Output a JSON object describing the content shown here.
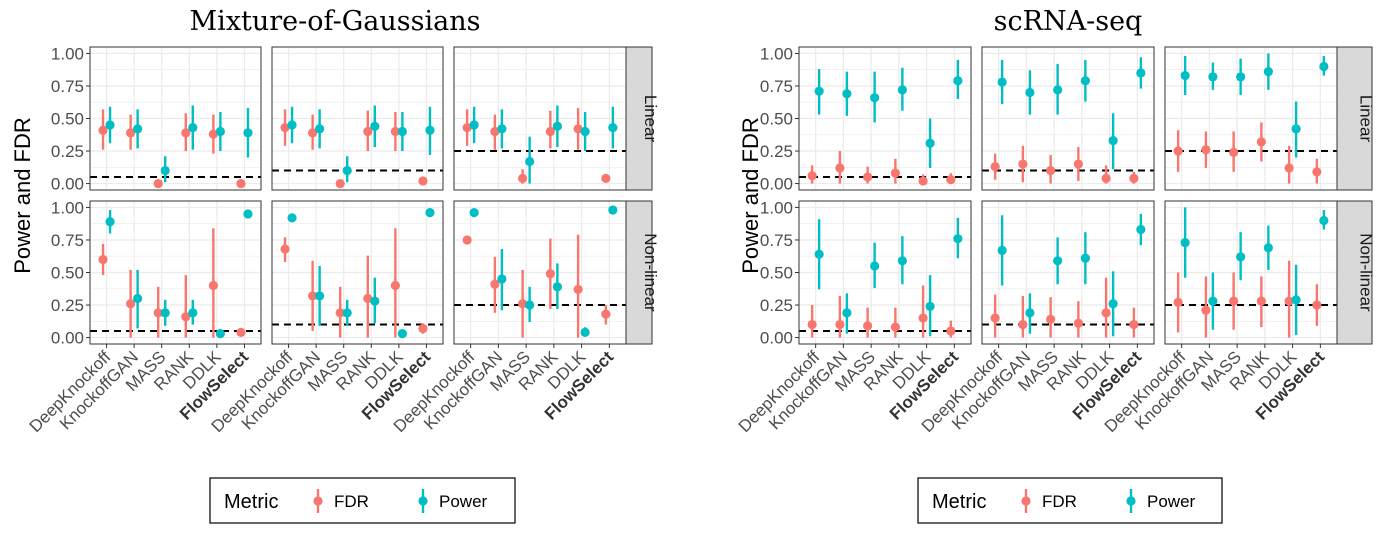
{
  "chart_data": [
    {
      "type": "scatter",
      "title": "Mixture-of-Gaussians",
      "ylabel": "Power and FDR",
      "ylim": [
        0,
        1
      ],
      "yticks": [
        "0.00",
        "0.25",
        "0.50",
        "0.75",
        "1.00"
      ],
      "categories": [
        "DeepKnockoff",
        "KnockoffGAN",
        "MASS",
        "RANK",
        "DDLK",
        "FlowSelect"
      ],
      "bold_category": "FlowSelect",
      "rows": [
        "Linear",
        "Non-linear"
      ],
      "fdr_targets": [
        0.05,
        0.1,
        0.25
      ],
      "legend": {
        "title": "Metric",
        "entries": [
          "FDR",
          "Power"
        ],
        "placement": "bottom"
      },
      "colors": {
        "FDR": "#F8766D",
        "Power": "#00BFC4"
      },
      "grid": true,
      "panels": [
        {
          "row": "Linear",
          "target": 0.05,
          "FDR": [
            [
              0.41,
              0.26,
              0.57
            ],
            [
              0.39,
              0.26,
              0.53
            ],
            [
              0.0,
              0.0,
              0.0
            ],
            [
              0.39,
              0.25,
              0.54
            ],
            [
              0.38,
              0.23,
              0.53
            ],
            [
              0.0,
              0.0,
              0.0
            ]
          ],
          "Power": [
            [
              0.45,
              0.31,
              0.59
            ],
            [
              0.42,
              0.27,
              0.57
            ],
            [
              0.1,
              0.01,
              0.21
            ],
            [
              0.43,
              0.26,
              0.6
            ],
            [
              0.4,
              0.25,
              0.55
            ],
            [
              0.39,
              0.2,
              0.58
            ]
          ]
        },
        {
          "row": "Linear",
          "target": 0.1,
          "FDR": [
            [
              0.43,
              0.29,
              0.57
            ],
            [
              0.39,
              0.26,
              0.53
            ],
            [
              0.0,
              0.0,
              0.0
            ],
            [
              0.4,
              0.25,
              0.56
            ],
            [
              0.4,
              0.25,
              0.55
            ],
            [
              0.02,
              0.01,
              0.03
            ]
          ],
          "Power": [
            [
              0.45,
              0.31,
              0.59
            ],
            [
              0.42,
              0.27,
              0.57
            ],
            [
              0.1,
              0.01,
              0.21
            ],
            [
              0.44,
              0.28,
              0.6
            ],
            [
              0.4,
              0.25,
              0.55
            ],
            [
              0.41,
              0.22,
              0.59
            ]
          ]
        },
        {
          "row": "Linear",
          "target": 0.25,
          "FDR": [
            [
              0.43,
              0.29,
              0.57
            ],
            [
              0.4,
              0.26,
              0.53
            ],
            [
              0.04,
              0.0,
              0.11
            ],
            [
              0.4,
              0.27,
              0.56
            ],
            [
              0.42,
              0.26,
              0.58
            ],
            [
              0.04,
              0.01,
              0.07
            ]
          ],
          "Power": [
            [
              0.45,
              0.31,
              0.59
            ],
            [
              0.42,
              0.27,
              0.57
            ],
            [
              0.17,
              0.0,
              0.36
            ],
            [
              0.44,
              0.28,
              0.6
            ],
            [
              0.4,
              0.25,
              0.55
            ],
            [
              0.43,
              0.27,
              0.59
            ]
          ]
        },
        {
          "row": "Non-linear",
          "target": 0.05,
          "FDR": [
            [
              0.6,
              0.48,
              0.72
            ],
            [
              0.26,
              0.0,
              0.52
            ],
            [
              0.19,
              0.0,
              0.39
            ],
            [
              0.16,
              0.0,
              0.48
            ],
            [
              0.4,
              0.0,
              0.84
            ],
            [
              0.04,
              0.02,
              0.07
            ]
          ],
          "Power": [
            [
              0.89,
              0.8,
              0.98
            ],
            [
              0.3,
              0.07,
              0.52
            ],
            [
              0.19,
              0.09,
              0.29
            ],
            [
              0.19,
              0.1,
              0.29
            ],
            [
              0.03,
              0.01,
              0.05
            ],
            [
              0.95,
              0.93,
              0.97
            ]
          ]
        },
        {
          "row": "Non-linear",
          "target": 0.1,
          "FDR": [
            [
              0.68,
              0.58,
              0.77
            ],
            [
              0.32,
              0.05,
              0.59
            ],
            [
              0.19,
              0.0,
              0.39
            ],
            [
              0.3,
              0.0,
              0.63
            ],
            [
              0.4,
              0.0,
              0.84
            ],
            [
              0.07,
              0.03,
              0.11
            ]
          ],
          "Power": [
            [
              0.92,
              0.91,
              0.94
            ],
            [
              0.32,
              0.09,
              0.55
            ],
            [
              0.19,
              0.09,
              0.29
            ],
            [
              0.28,
              0.11,
              0.46
            ],
            [
              0.03,
              0.01,
              0.05
            ],
            [
              0.96,
              0.94,
              0.98
            ]
          ]
        },
        {
          "row": "Non-linear",
          "target": 0.25,
          "FDR": [
            [
              0.75,
              0.74,
              0.76
            ],
            [
              0.41,
              0.19,
              0.62
            ],
            [
              0.26,
              0.0,
              0.52
            ],
            [
              0.49,
              0.22,
              0.76
            ],
            [
              0.37,
              0.0,
              0.79
            ],
            [
              0.18,
              0.1,
              0.25
            ]
          ],
          "Power": [
            [
              0.96,
              0.95,
              0.97
            ],
            [
              0.45,
              0.21,
              0.68
            ],
            [
              0.25,
              0.12,
              0.39
            ],
            [
              0.39,
              0.22,
              0.57
            ],
            [
              0.04,
              0.01,
              0.08
            ],
            [
              0.98,
              0.97,
              0.99
            ]
          ]
        }
      ]
    },
    {
      "type": "scatter",
      "title": "scRNA-seq",
      "ylabel": "Power and FDR",
      "ylim": [
        0,
        1
      ],
      "yticks": [
        "0.00",
        "0.25",
        "0.50",
        "0.75",
        "1.00"
      ],
      "categories": [
        "DeepKnockoff",
        "KnockoffGAN",
        "MASS",
        "RANK",
        "DDLK",
        "FlowSelect"
      ],
      "bold_category": "FlowSelect",
      "rows": [
        "Linear",
        "Non-linear"
      ],
      "fdr_targets": [
        0.05,
        0.1,
        0.25
      ],
      "legend": {
        "title": "Metric",
        "entries": [
          "FDR",
          "Power"
        ],
        "placement": "bottom"
      },
      "colors": {
        "FDR": "#F8766D",
        "Power": "#00BFC4"
      },
      "grid": true,
      "panels": [
        {
          "row": "Linear",
          "target": 0.05,
          "FDR": [
            [
              0.06,
              0.0,
              0.14
            ],
            [
              0.12,
              0.0,
              0.25
            ],
            [
              0.05,
              0.0,
              0.13
            ],
            [
              0.08,
              0.0,
              0.19
            ],
            [
              0.02,
              0.0,
              0.07
            ],
            [
              0.03,
              0.0,
              0.08
            ]
          ],
          "Power": [
            [
              0.71,
              0.53,
              0.88
            ],
            [
              0.69,
              0.52,
              0.86
            ],
            [
              0.66,
              0.47,
              0.86
            ],
            [
              0.72,
              0.56,
              0.89
            ],
            [
              0.31,
              0.12,
              0.5
            ],
            [
              0.79,
              0.65,
              0.95
            ]
          ]
        },
        {
          "row": "Linear",
          "target": 0.1,
          "FDR": [
            [
              0.13,
              0.03,
              0.23
            ],
            [
              0.15,
              0.01,
              0.29
            ],
            [
              0.1,
              0.0,
              0.22
            ],
            [
              0.15,
              0.02,
              0.28
            ],
            [
              0.04,
              0.0,
              0.14
            ],
            [
              0.04,
              0.0,
              0.09
            ]
          ],
          "Power": [
            [
              0.78,
              0.61,
              0.95
            ],
            [
              0.7,
              0.53,
              0.87
            ],
            [
              0.72,
              0.53,
              0.92
            ],
            [
              0.79,
              0.63,
              0.95
            ],
            [
              0.33,
              0.11,
              0.54
            ],
            [
              0.85,
              0.73,
              0.97
            ]
          ]
        },
        {
          "row": "Linear",
          "target": 0.25,
          "FDR": [
            [
              0.25,
              0.09,
              0.41
            ],
            [
              0.26,
              0.12,
              0.4
            ],
            [
              0.24,
              0.09,
              0.4
            ],
            [
              0.32,
              0.17,
              0.47
            ],
            [
              0.12,
              0.0,
              0.29
            ],
            [
              0.09,
              0.0,
              0.19
            ]
          ],
          "Power": [
            [
              0.83,
              0.68,
              0.98
            ],
            [
              0.82,
              0.72,
              0.93
            ],
            [
              0.82,
              0.68,
              0.96
            ],
            [
              0.86,
              0.72,
              1.0
            ],
            [
              0.42,
              0.2,
              0.63
            ],
            [
              0.9,
              0.83,
              0.98
            ]
          ]
        },
        {
          "row": "Non-linear",
          "target": 0.05,
          "FDR": [
            [
              0.1,
              0.0,
              0.25
            ],
            [
              0.1,
              0.0,
              0.32
            ],
            [
              0.09,
              0.0,
              0.23
            ],
            [
              0.08,
              0.0,
              0.23
            ],
            [
              0.15,
              0.0,
              0.4
            ],
            [
              0.05,
              0.0,
              0.13
            ]
          ],
          "Power": [
            [
              0.64,
              0.37,
              0.91
            ],
            [
              0.19,
              0.03,
              0.34
            ],
            [
              0.55,
              0.38,
              0.73
            ],
            [
              0.59,
              0.41,
              0.78
            ],
            [
              0.24,
              0.01,
              0.48
            ],
            [
              0.76,
              0.61,
              0.92
            ]
          ]
        },
        {
          "row": "Non-linear",
          "target": 0.1,
          "FDR": [
            [
              0.15,
              0.0,
              0.33
            ],
            [
              0.1,
              0.0,
              0.32
            ],
            [
              0.14,
              0.0,
              0.31
            ],
            [
              0.11,
              0.0,
              0.28
            ],
            [
              0.19,
              0.0,
              0.46
            ],
            [
              0.1,
              0.0,
              0.23
            ]
          ],
          "Power": [
            [
              0.67,
              0.4,
              0.94
            ],
            [
              0.19,
              0.03,
              0.34
            ],
            [
              0.59,
              0.41,
              0.77
            ],
            [
              0.61,
              0.41,
              0.81
            ],
            [
              0.26,
              0.01,
              0.51
            ],
            [
              0.83,
              0.71,
              0.95
            ]
          ]
        },
        {
          "row": "Non-linear",
          "target": 0.25,
          "FDR": [
            [
              0.27,
              0.04,
              0.5
            ],
            [
              0.21,
              0.0,
              0.47
            ],
            [
              0.28,
              0.06,
              0.5
            ],
            [
              0.28,
              0.08,
              0.47
            ],
            [
              0.28,
              0.0,
              0.59
            ],
            [
              0.25,
              0.09,
              0.41
            ]
          ],
          "Power": [
            [
              0.73,
              0.46,
              1.0
            ],
            [
              0.28,
              0.06,
              0.5
            ],
            [
              0.62,
              0.44,
              0.81
            ],
            [
              0.69,
              0.52,
              0.86
            ],
            [
              0.29,
              0.02,
              0.56
            ],
            [
              0.9,
              0.83,
              0.98
            ]
          ]
        }
      ]
    }
  ]
}
